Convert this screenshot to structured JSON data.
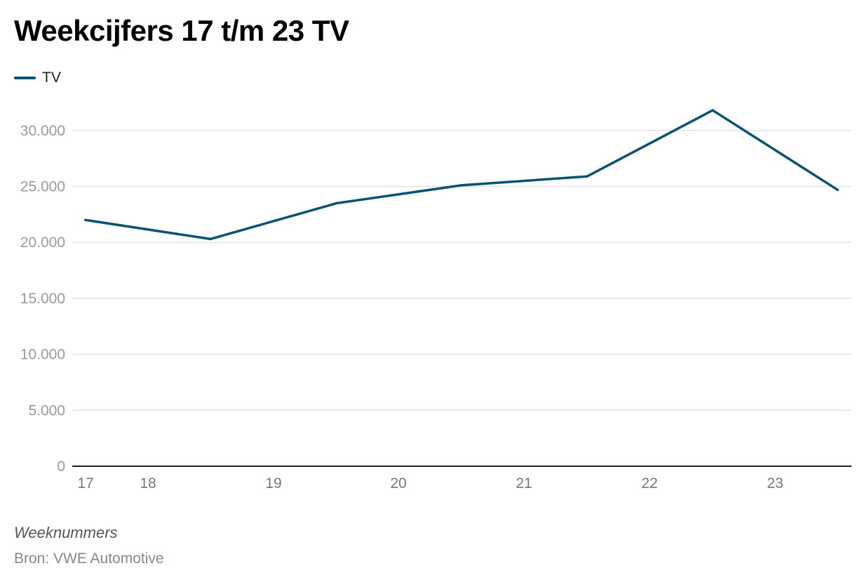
{
  "chart_data": {
    "type": "line",
    "title": "Weekcijfers 17 t/m 23 TV",
    "xlabel": "Weeknummers",
    "ylabel": "",
    "source": "Bron: VWE Automotive",
    "ylim": [
      0,
      32500
    ],
    "yticks": [
      0,
      5000,
      10000,
      15000,
      20000,
      25000,
      30000
    ],
    "ytick_labels": [
      "0",
      "5.000",
      "10.000",
      "15.000",
      "20.000",
      "25.000",
      "30.000"
    ],
    "xticks": [
      17,
      18,
      19,
      20,
      21,
      22,
      23
    ],
    "xtick_labels": [
      "17",
      "18",
      "19",
      "20",
      "21",
      "22",
      "23"
    ],
    "x": [
      17,
      18,
      19,
      20,
      21,
      22,
      23
    ],
    "grid": true,
    "legend_position": "top-left",
    "series": [
      {
        "name": "TV",
        "color": "#0b5373",
        "values": [
          22000,
          20300,
          23500,
          25100,
          25900,
          31800,
          24700
        ]
      }
    ]
  }
}
